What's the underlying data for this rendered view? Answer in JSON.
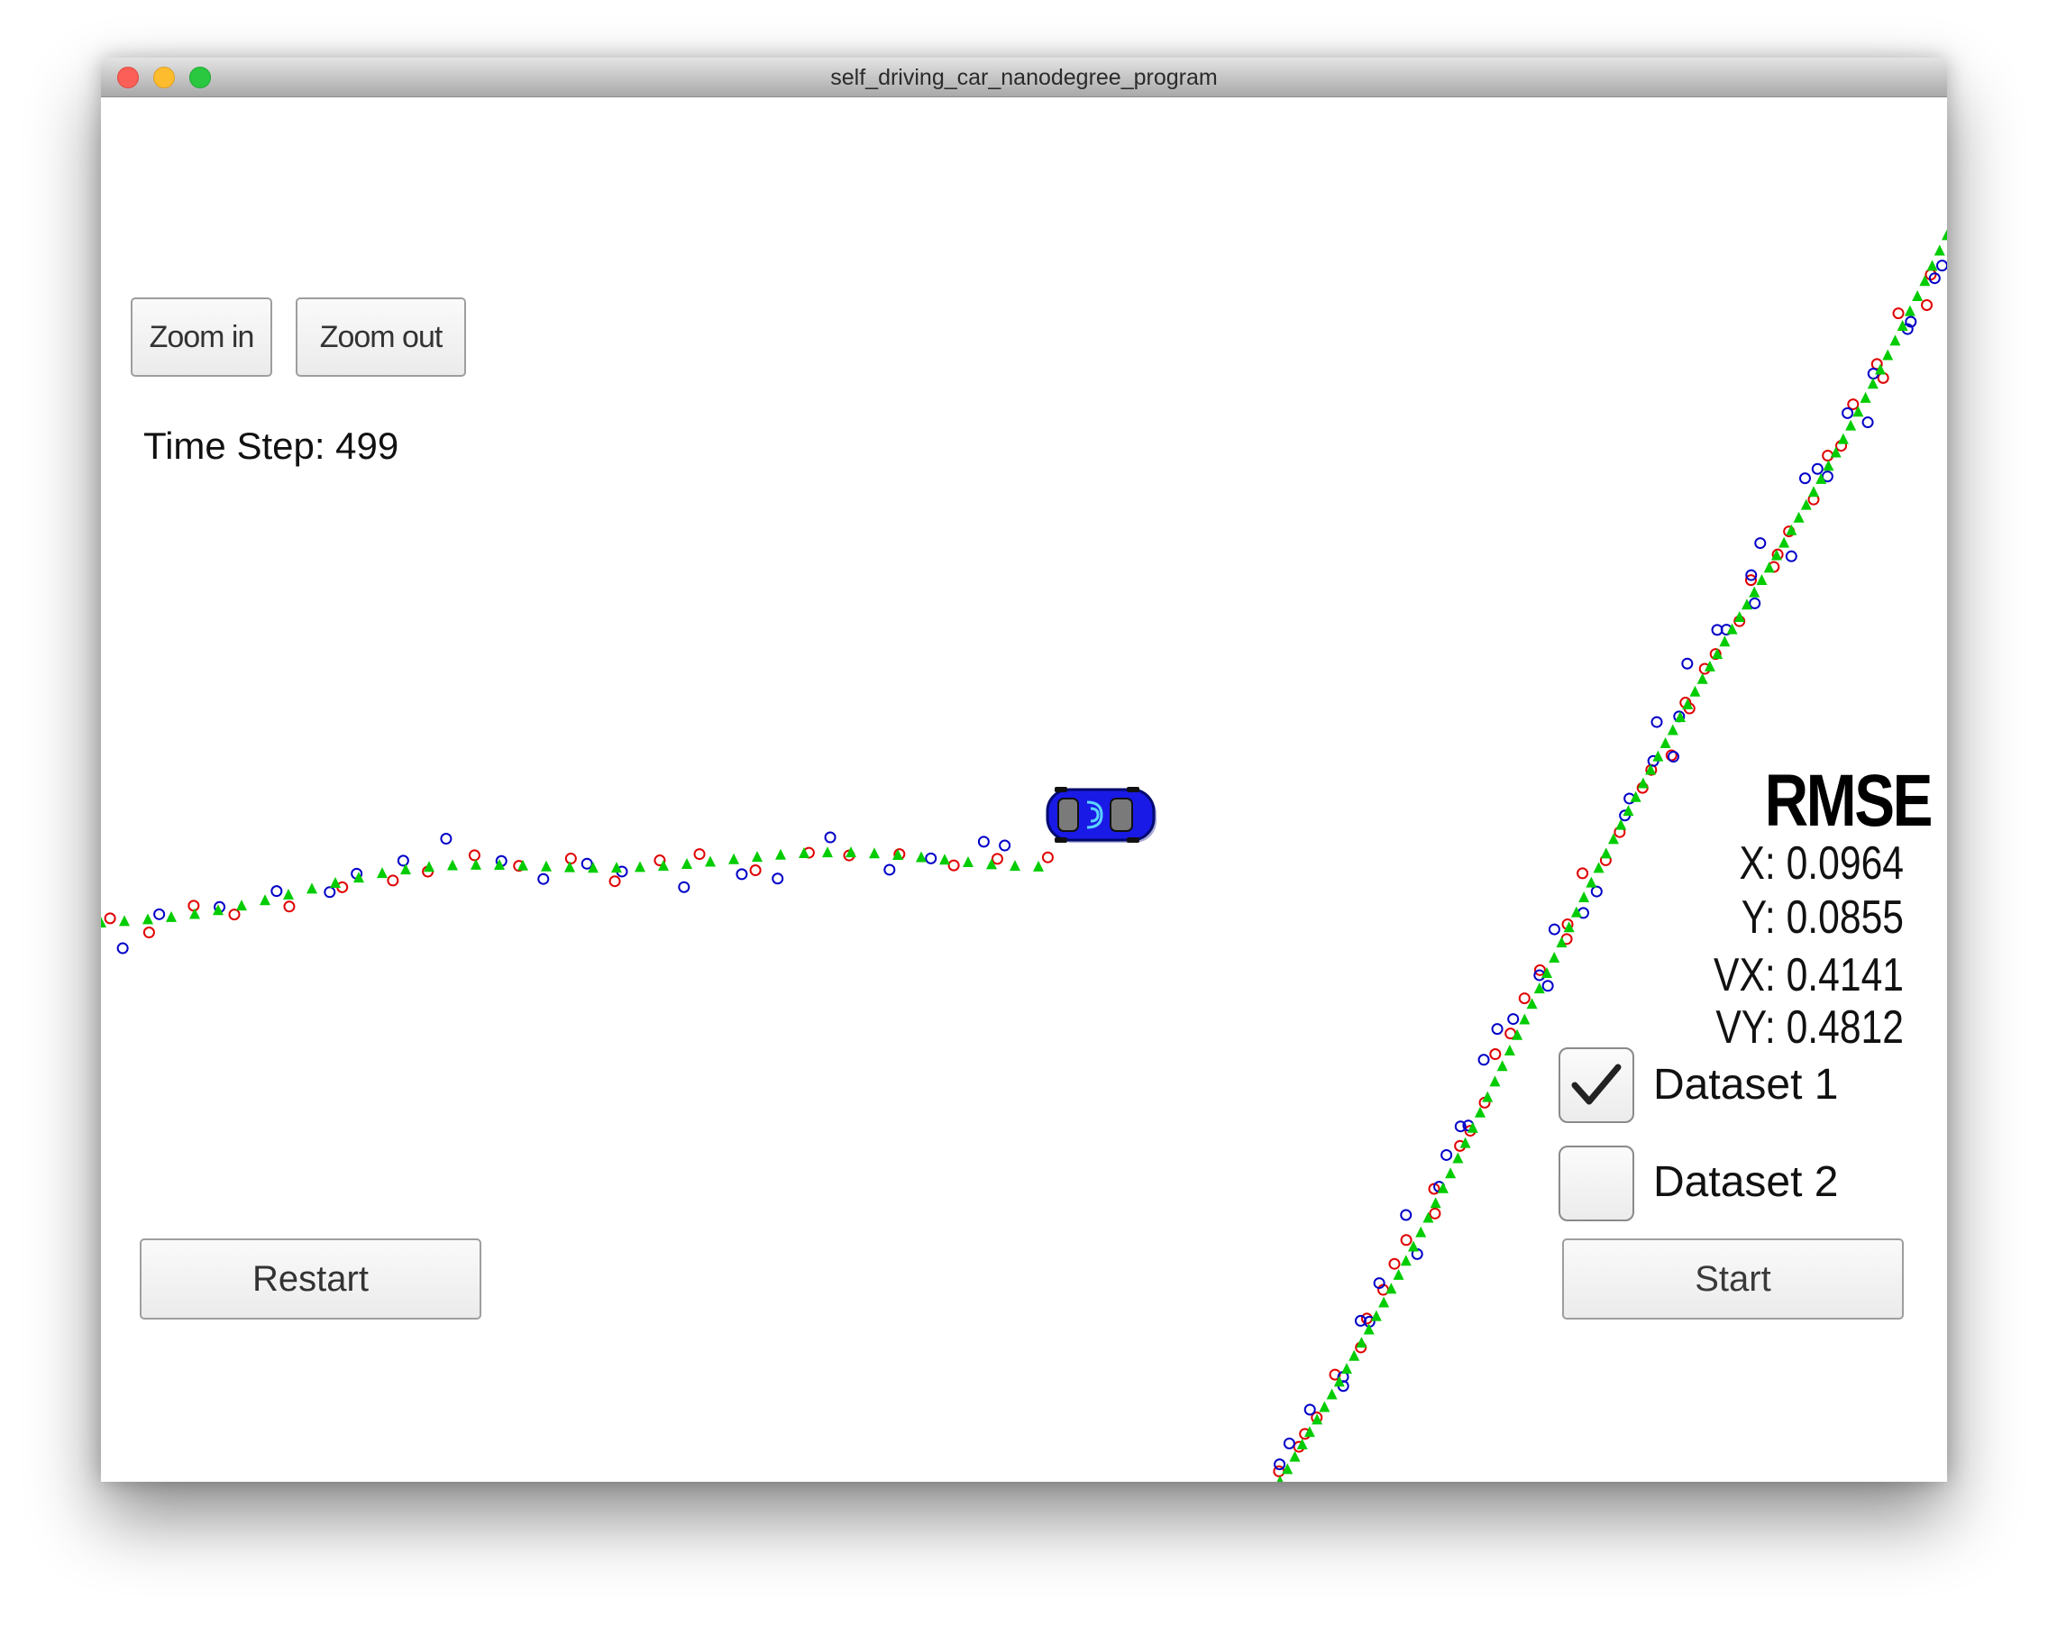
{
  "window": {
    "title": "self_driving_car_nanodegree_program"
  },
  "toolbar": {
    "zoom_in_label": "Zoom in",
    "zoom_out_label": "Zoom out"
  },
  "status": {
    "time_step_label": "Time Step: 499"
  },
  "rmse": {
    "title": "RMSE",
    "x": "X: 0.0964",
    "y": "Y: 0.0855",
    "vx": "VX: 0.4141",
    "vy": "VY: 0.4812"
  },
  "datasets": [
    {
      "label": "Dataset 1",
      "checked": true
    },
    {
      "label": "Dataset 2",
      "checked": false
    }
  ],
  "controls": {
    "restart_label": "Restart",
    "start_label": "Start"
  },
  "colors": {
    "lidar_marker": "#e00000",
    "radar_marker": "#0000c8",
    "estimate_marker": "#00cc00",
    "car_body": "#1a1ae6"
  },
  "icons": {
    "car": "car-icon",
    "check": "check-icon"
  }
}
